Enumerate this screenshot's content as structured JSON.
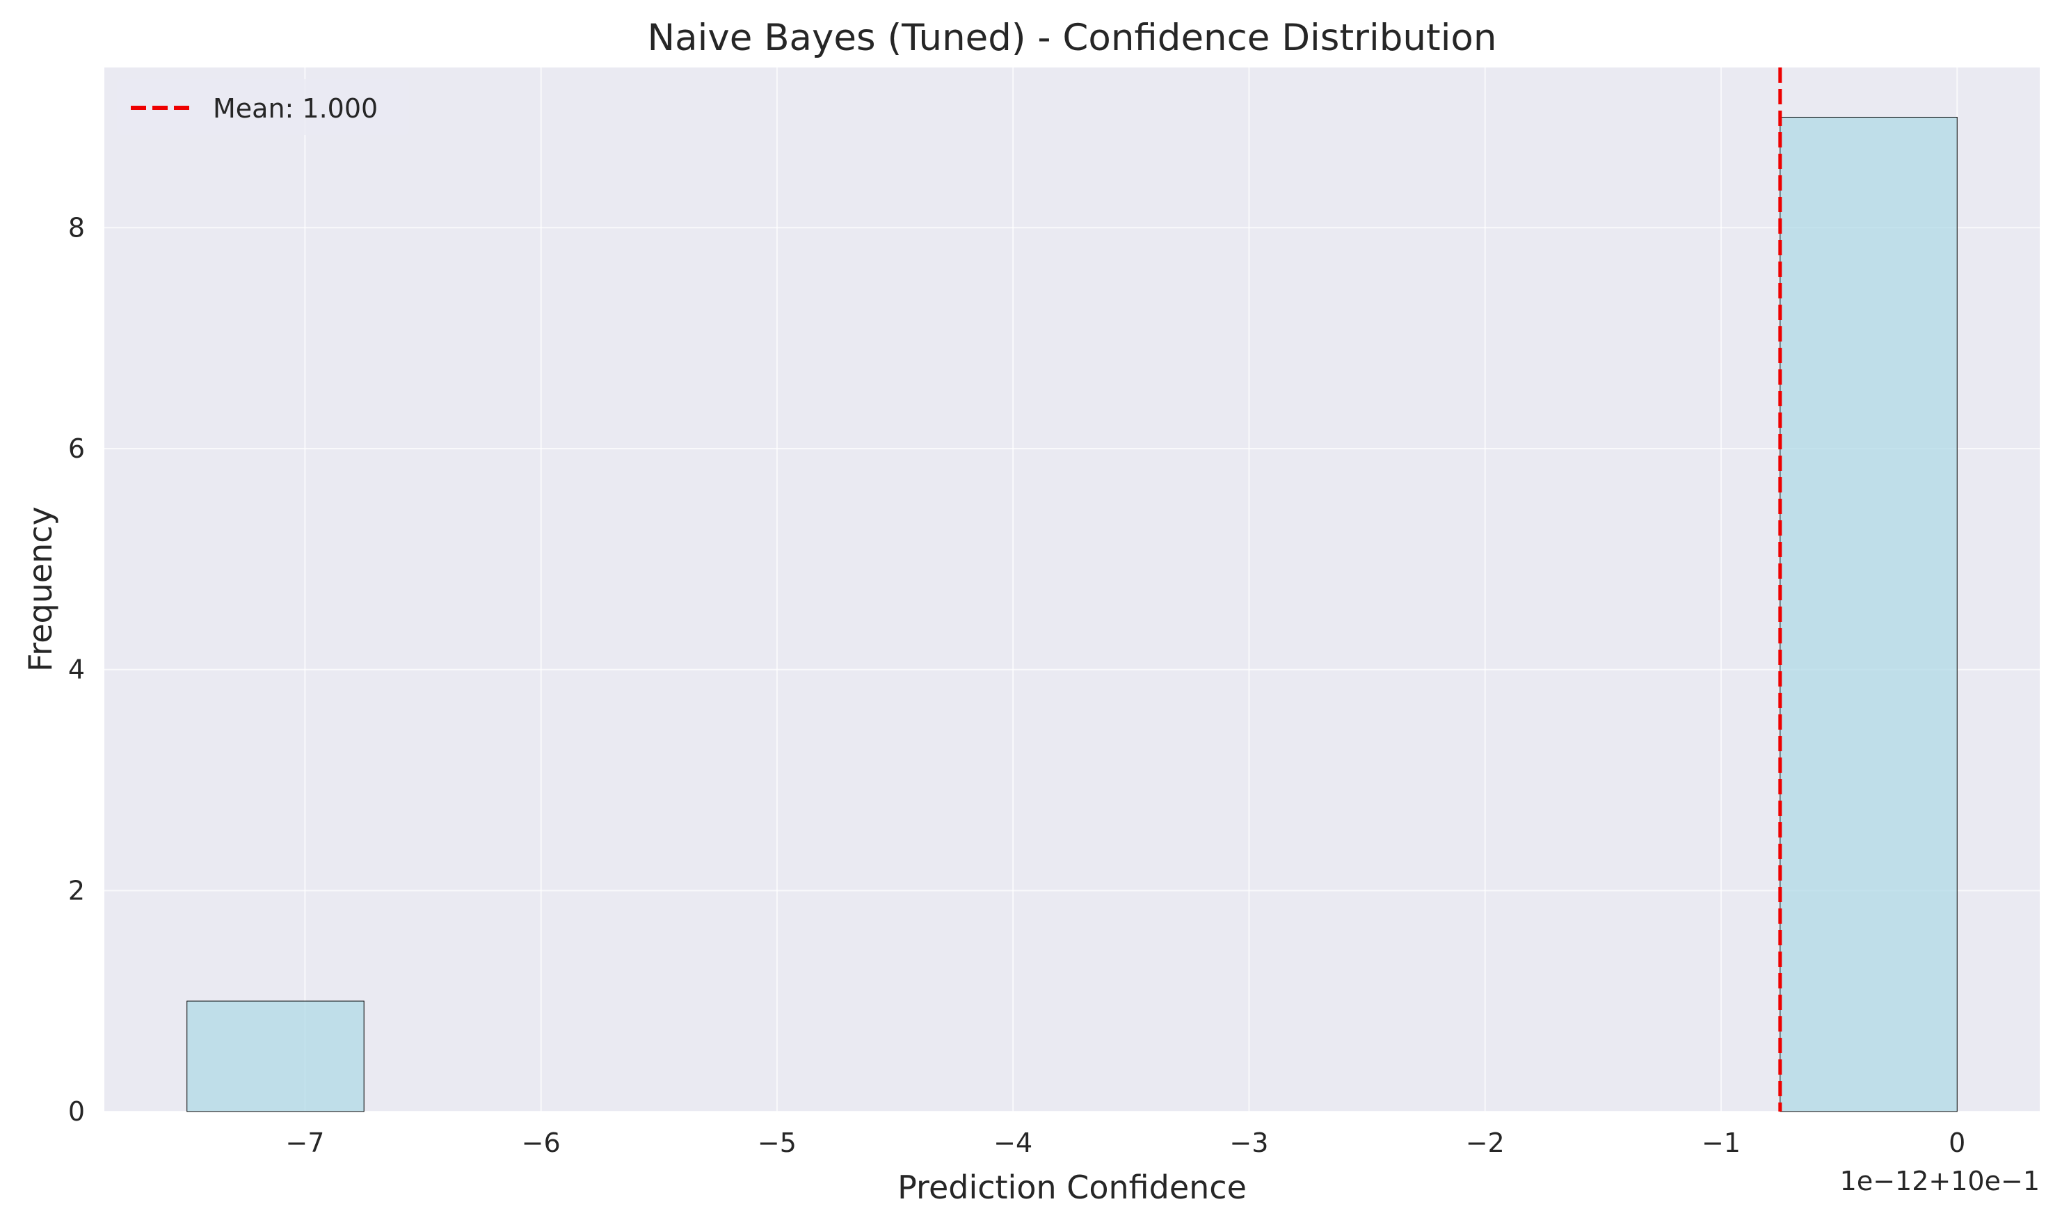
{
  "chart_data": {
    "type": "histogram",
    "title": "Naive Bayes (Tuned) - Confidence Distribution",
    "xlabel": "Prediction Confidence",
    "ylabel": "Frequency",
    "x_offset_label": "1e−12+10e−1",
    "xlim": [
      -7.85,
      0.35
    ],
    "ylim": [
      0,
      9.45
    ],
    "xticks": [
      -7,
      -6,
      -5,
      -4,
      -3,
      -2,
      -1,
      0
    ],
    "xtick_labels": [
      "−7",
      "−6",
      "−5",
      "−4",
      "−3",
      "−2",
      "−1",
      "0"
    ],
    "yticks": [
      0,
      2,
      4,
      6,
      8
    ],
    "ytick_labels": [
      "0",
      "2",
      "4",
      "6",
      "8"
    ],
    "bins": [
      {
        "x0": -7.5,
        "x1": -6.75,
        "count": 1
      },
      {
        "x0": -0.75,
        "x1": 0.0,
        "count": 9
      }
    ],
    "mean_line": {
      "x": -0.75,
      "label": "Mean: 1.000",
      "color": "#ee0000",
      "style": "dashed"
    },
    "legend_position": "upper left",
    "grid": true,
    "colors": {
      "background": "#eaeaf2",
      "grid": "#ffffff",
      "bar_fill": "#add8e6",
      "bar_edge": "#000000"
    }
  }
}
